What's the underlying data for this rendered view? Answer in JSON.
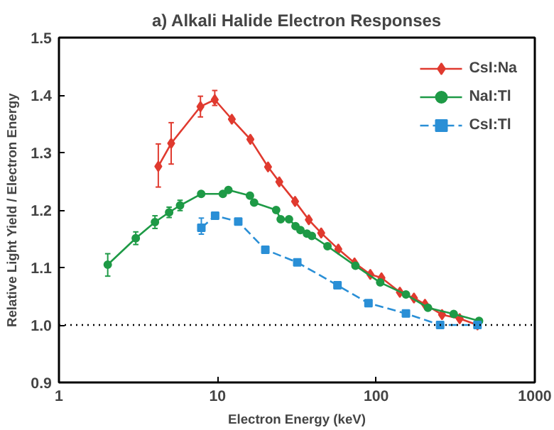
{
  "chart_data": {
    "type": "line",
    "title": "a) Alkali Halide Electron Responses",
    "xlabel": "Electron Energy (keV)",
    "ylabel": "Relative Light Yield / Electron Energy",
    "log": "x",
    "xlim": [
      1,
      1000
    ],
    "xticks": [
      1,
      10,
      100,
      1000
    ],
    "ylim": [
      0.9,
      1.5
    ],
    "yticks": [
      0.9,
      {
        "value": 1.0,
        "label": "1.0"
      },
      1.1,
      1.2,
      1.3,
      1.4,
      1.5
    ],
    "grid": false,
    "legend": "top right",
    "ref_lines": [
      {
        "axis": "y",
        "value": 1.0,
        "label": null,
        "color": "#000000",
        "line_style": "dotted"
      }
    ],
    "series": [
      {
        "name": "CsI:Na",
        "color": "#e03a2f",
        "marker": "diamond",
        "line_style": "solid",
        "x": [
          4.23,
          5.1,
          7.8,
          9.6,
          12.3,
          16.1,
          20.8,
          24.5,
          30.8,
          37.6,
          45,
          57.7,
          73,
          91.8,
          108,
          141,
          173,
          203,
          260,
          336,
          435
        ],
        "values": [
          1.276,
          1.316,
          1.38,
          1.392,
          1.358,
          1.323,
          1.275,
          1.249,
          1.215,
          1.183,
          1.16,
          1.132,
          1.108,
          1.088,
          1.082,
          1.057,
          1.047,
          1.036,
          1.018,
          1.011,
          1.0
        ],
        "errors": [
          [
            1.24,
            1.315
          ],
          [
            1.28,
            1.352
          ],
          [
            1.362,
            1.398
          ],
          [
            1.382,
            1.408
          ],
          null,
          null,
          null,
          null,
          null,
          null,
          null,
          null,
          null,
          null,
          null,
          null,
          null,
          null,
          null,
          null,
          null
        ]
      },
      {
        "name": "NaI:Tl",
        "color": "#1e9a46",
        "marker": "circle",
        "line_style": "solid",
        "x": [
          2.03,
          3.05,
          4.03,
          4.95,
          5.8,
          7.88,
          10.8,
          11.7,
          16,
          17,
          23.4,
          25,
          28.2,
          31,
          33.3,
          36.6,
          39.3,
          49.3,
          74,
          106,
          154,
          212,
          308,
          445
        ],
        "values": [
          1.105,
          1.151,
          1.179,
          1.196,
          1.208,
          1.228,
          1.228,
          1.235,
          1.225,
          1.213,
          1.2,
          1.184,
          1.184,
          1.172,
          1.165,
          1.159,
          1.155,
          1.137,
          1.103,
          1.074,
          1.053,
          1.03,
          1.019,
          1.007
        ],
        "errors": [
          [
            1.085,
            1.124
          ],
          [
            1.14,
            1.162
          ],
          [
            1.168,
            1.19
          ],
          [
            1.187,
            1.205
          ],
          [
            1.199,
            1.217
          ],
          null,
          null,
          null,
          null,
          null,
          null,
          null,
          null,
          null,
          null,
          null,
          null,
          null,
          null,
          null,
          null,
          null,
          null,
          null
        ]
      },
      {
        "name": "CsI:Tl",
        "color": "#2a8fd6",
        "marker": "square",
        "line_style": "dashed",
        "x": [
          7.9,
          9.65,
          13.5,
          20,
          31.8,
          57,
          89.4,
          154,
          253,
          435
        ],
        "values": [
          1.169,
          1.19,
          1.18,
          1.131,
          1.109,
          1.069,
          1.038,
          1.02,
          1.0,
          1.0
        ],
        "errors": [
          [
            1.158,
            1.186
          ],
          null,
          null,
          null,
          null,
          null,
          null,
          null,
          null,
          null
        ]
      }
    ]
  }
}
